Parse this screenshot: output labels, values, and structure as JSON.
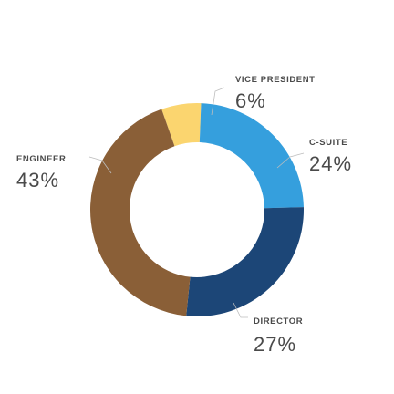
{
  "chart_data": {
    "type": "pie",
    "donut": true,
    "categories": [
      "VICE PRESIDENT",
      "C-SUITE",
      "DIRECTOR",
      "ENGINEER"
    ],
    "values": [
      6,
      24,
      27,
      43
    ],
    "value_labels": [
      "6%",
      "24%",
      "27%",
      "43%"
    ],
    "colors": [
      "#fbd56f",
      "#359fdd",
      "#1c4677",
      "#8a5f37"
    ],
    "title": "",
    "legend": "none"
  }
}
